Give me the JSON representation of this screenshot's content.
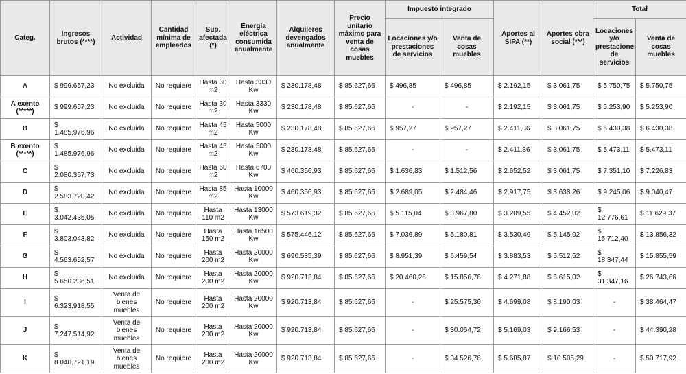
{
  "table": {
    "header": {
      "columns": [
        "Categ.",
        "Ingresos brutos (****)",
        "Actividad",
        "Cantidad mínima de empleados",
        "Sup. afectada (*)",
        "Energía eléctrica consumida anualmente",
        "Alquileres devengados anualmente",
        "Precio unitario máximo para venta de cosas muebles"
      ],
      "group1": "Impuesto integrado",
      "group1_sub": [
        "Locaciones y/o prestaciones de servicios",
        "Venta de cosas muebles"
      ],
      "aportes": [
        "Aportes al SIPA (**)",
        "Aportes obra social (***)"
      ],
      "group2": "Total",
      "group2_sub": [
        "Locaciones y/o prestaciones de servicios",
        "Venta de cosas muebles"
      ]
    },
    "rows": [
      [
        "A",
        "$ 999.657,23",
        "No excluida",
        "No requiere",
        "Hasta 30 m2",
        "Hasta 3330 Kw",
        "$ 230.178,48",
        "$ 85.627,66",
        "$ 496,85",
        "$ 496,85",
        "$ 2.192,15",
        "$ 3.061,75",
        "$ 5.750,75",
        "$ 5.750,75"
      ],
      [
        "A exento (*****)",
        "$ 999.657,23",
        "No excluida",
        "No requiere",
        "Hasta 30 m2",
        "Hasta 3330 Kw",
        "$ 230.178,48",
        "$ 85.627,66",
        "-",
        "-",
        "$ 2.192,15",
        "$ 3.061,75",
        "$ 5.253,90",
        "$ 5.253,90"
      ],
      [
        "B",
        "$ 1.485.976,96",
        "No excluida",
        "No requiere",
        "Hasta 45 m2",
        "Hasta 5000 Kw",
        "$ 230.178,48",
        "$ 85.627,66",
        "$ 957,27",
        "$ 957,27",
        "$ 2.411,36",
        "$ 3.061,75",
        "$ 6.430,38",
        "$ 6.430,38"
      ],
      [
        "B exento (*****)",
        "$ 1.485.976,96",
        "No excluida",
        "No requiere",
        "Hasta 45 m2",
        "Hasta 5000 Kw",
        "$ 230.178,48",
        "$ 85.627,66",
        "-",
        "-",
        "$ 2.411,36",
        "$ 3.061,75",
        "$ 5.473,11",
        "$ 5.473,11"
      ],
      [
        "C",
        "$ 2.080.367,73",
        "No excluida",
        "No requiere",
        "Hasta 60 m2",
        "Hasta 6700 Kw",
        "$ 460.356,93",
        "$ 85.627,66",
        "$ 1.636,83",
        "$ 1.512,56",
        "$ 2.652,52",
        "$ 3.061,75",
        "$ 7.351,10",
        "$ 7.226,83"
      ],
      [
        "D",
        "$ 2.583.720,42",
        "No excluida",
        "No requiere",
        "Hasta 85 m2",
        "Hasta 10000 Kw",
        "$ 460.356,93",
        "$ 85.627,66",
        "$ 2.689,05",
        "$ 2.484,46",
        "$ 2.917,75",
        "$ 3.638,26",
        "$ 9.245,06",
        "$ 9.040,47"
      ],
      [
        "E",
        "$ 3.042.435,05",
        "No excluida",
        "No requiere",
        "Hasta 110 m2",
        "Hasta 13000 Kw",
        "$ 573.619,32",
        "$ 85.627,66",
        "$ 5.115,04",
        "$ 3.967,80",
        "$ 3.209,55",
        "$ 4.452,02",
        "$ 12.776,61",
        "$ 11.629,37"
      ],
      [
        "F",
        "$ 3.803.043,82",
        "No excluida",
        "No requiere",
        "Hasta 150 m2",
        "Hasta 16500 Kw",
        "$ 575.446,12",
        "$ 85.627,66",
        "$ 7.036,89",
        "$ 5.180,81",
        "$ 3.530,49",
        "$ 5.145,02",
        "$ 15.712,40",
        "$ 13.856,32"
      ],
      [
        "G",
        "$ 4.563.652,57",
        "No excluida",
        "No requiere",
        "Hasta 200 m2",
        "Hasta 20000 Kw",
        "$ 690.535,39",
        "$ 85.627,66",
        "$ 8.951,39",
        "$ 6.459,54",
        "$ 3.883,53",
        "$ 5.512,52",
        "$ 18.347,44",
        "$ 15.855,59"
      ],
      [
        "H",
        "$ 5.650.236,51",
        "No excluida",
        "No requiere",
        "Hasta 200 m2",
        "Hasta 20000 Kw",
        "$ 920.713,84",
        "$ 85.627,66",
        "$ 20.460,26",
        "$ 15.856,76",
        "$ 4.271,88",
        "$ 6.615,02",
        "$ 31.347,16",
        "$ 26.743,66"
      ],
      [
        "I",
        "$ 6.323.918,55",
        "Venta de bienes muebles",
        "No requiere",
        "Hasta 200 m2",
        "Hasta 20000 Kw",
        "$ 920.713,84",
        "$ 85.627,66",
        "-",
        "$ 25.575,36",
        "$ 4.699,08",
        "$ 8.190,03",
        "-",
        "$ 38.464,47"
      ],
      [
        "J",
        "$ 7.247.514,92",
        "Venta de bienes muebles",
        "No requiere",
        "Hasta 200 m2",
        "Hasta 20000 Kw",
        "$ 920.713,84",
        "$ 85.627,66",
        "-",
        "$ 30.054,72",
        "$ 5.169,03",
        "$ 9.166,53",
        "-",
        "$ 44.390,28"
      ],
      [
        "K",
        "$ 8.040.721,19",
        "Venta de bienes muebles",
        "No requiere",
        "Hasta 200 m2",
        "Hasta 20000 Kw",
        "$ 920.713,84",
        "$ 85.627,66",
        "-",
        "$ 34.526,76",
        "$ 5.685,87",
        "$ 10.505,29",
        "-",
        "$ 50.717,92"
      ]
    ]
  }
}
